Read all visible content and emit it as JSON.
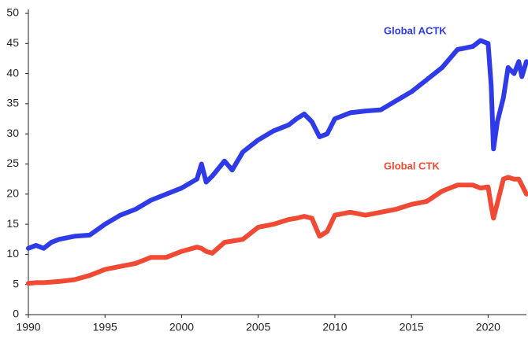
{
  "chart_data": {
    "type": "line",
    "x": [
      1990,
      1990.5,
      1991,
      1991.5,
      1992,
      1993,
      1994,
      1995,
      1996,
      1997,
      1998,
      1999,
      2000,
      2001,
      2001.3,
      2001.6,
      2002,
      2002.8,
      2003.3,
      2004,
      2005,
      2006,
      2007,
      2007.5,
      2008,
      2008.5,
      2009,
      2009.5,
      2010,
      2011,
      2012,
      2013,
      2014,
      2015,
      2016,
      2017,
      2018,
      2019,
      2019.5,
      2020,
      2020.2,
      2020.35,
      2020.6,
      2021,
      2021.3,
      2021.7,
      2022,
      2022.2,
      2022.5
    ],
    "series": [
      {
        "name": "Global ACTK",
        "color": "#2f3be8",
        "values": [
          11,
          11.5,
          11,
          12,
          12.5,
          13,
          13.2,
          15,
          16.5,
          17.5,
          19,
          20,
          21,
          22.5,
          25,
          22,
          23,
          25.5,
          24,
          27,
          29,
          30.5,
          31.5,
          32.5,
          33.3,
          32,
          29.5,
          30,
          32.5,
          33.5,
          33.8,
          34,
          35.5,
          37,
          39,
          41,
          44,
          44.5,
          45.5,
          45,
          38,
          27.5,
          32,
          36,
          41,
          40,
          42,
          39.5,
          42
        ]
      },
      {
        "name": "Global CTK",
        "color": "#f04a35",
        "values": [
          5.2,
          5.3,
          5.3,
          5.4,
          5.5,
          5.8,
          6.5,
          7.5,
          8,
          8.5,
          9.5,
          9.5,
          10.5,
          11.2,
          11,
          10.5,
          10.2,
          12,
          12.2,
          12.5,
          14.5,
          15,
          15.8,
          16,
          16.3,
          16,
          13,
          13.8,
          16.5,
          17,
          16.5,
          17,
          17.5,
          18.3,
          18.8,
          20.5,
          21.5,
          21.5,
          21,
          21.2,
          18,
          16,
          18.5,
          22.5,
          22.8,
          22.5,
          22.5,
          21.5,
          20
        ]
      }
    ],
    "xlim": [
      1990,
      2022.5
    ],
    "ylim": [
      0,
      50
    ],
    "xticks": [
      1990,
      1995,
      2000,
      2005,
      2010,
      2015,
      2020
    ],
    "yticks": [
      0,
      5,
      10,
      15,
      20,
      25,
      30,
      35,
      40,
      45,
      50
    ],
    "grid": false
  }
}
